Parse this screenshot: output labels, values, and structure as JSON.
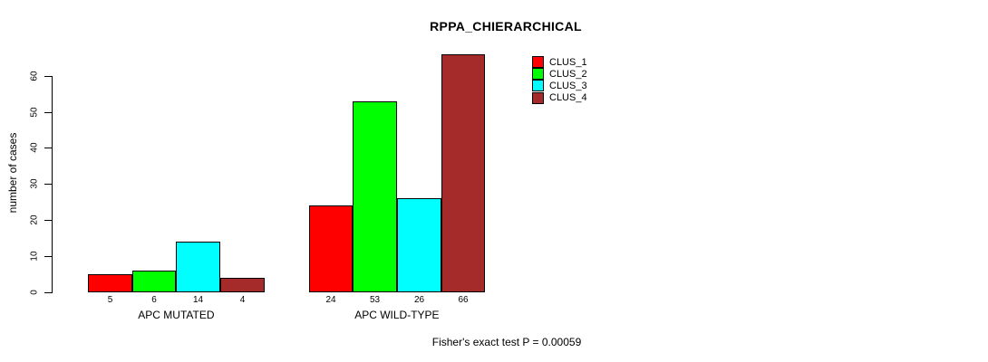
{
  "title": "RPPA_CHIERARCHICAL",
  "annotation": "Fisher's exact test P = 0.00059",
  "colors": {
    "clus_1": "#FF0000",
    "clus_2": "#00FF00",
    "clus_3": "#00FFFF",
    "clus_4": "#A52A2A",
    "axis": "#000000",
    "background": "#FFFFFF"
  },
  "chart_data": {
    "type": "bar",
    "grouped": true,
    "categories": [
      "APC MUTATED",
      "APC WILD-TYPE"
    ],
    "series": [
      {
        "name": "CLUS_1",
        "color": "#FF0000",
        "values": [
          5,
          24
        ]
      },
      {
        "name": "CLUS_2",
        "color": "#00FF00",
        "values": [
          6,
          53
        ]
      },
      {
        "name": "CLUS_3",
        "color": "#00FFFF",
        "values": [
          14,
          26
        ]
      },
      {
        "name": "CLUS_4",
        "color": "#A52A2A",
        "values": [
          4,
          66
        ]
      }
    ],
    "bar_value_labels": [
      [
        5,
        6,
        14,
        4
      ],
      [
        24,
        53,
        26,
        66
      ]
    ],
    "title": "RPPA_CHIERARCHICAL",
    "xlabel": "",
    "ylabel": "number of cases",
    "yticks": [
      0,
      10,
      20,
      30,
      40,
      50,
      60
    ],
    "ylim": [
      0,
      66
    ],
    "grid": false,
    "legend_entries": [
      "CLUS_1",
      "CLUS_2",
      "CLUS_3",
      "CLUS_4"
    ],
    "legend_position": "top-right-inside",
    "subtitle_bottom": "Fisher's exact test P = 0.00059"
  }
}
